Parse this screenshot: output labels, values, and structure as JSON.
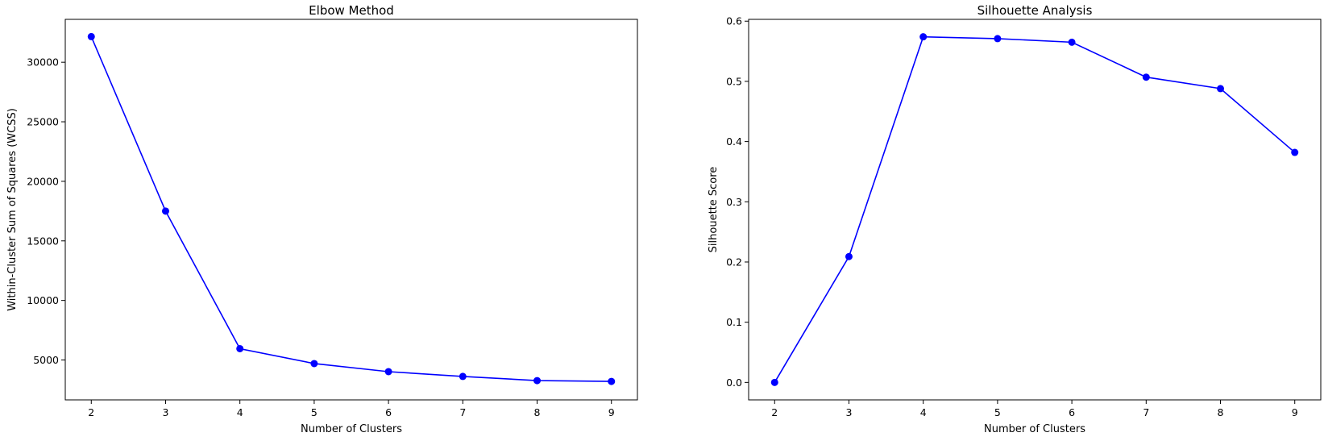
{
  "colors": {
    "line": "#0000ff",
    "axes": "#000000",
    "background": "#ffffff"
  },
  "chart_data": [
    {
      "type": "line",
      "title": "Elbow Method",
      "xlabel": "Number of Clusters",
      "ylabel": "Within-Cluster Sum of Squares (WCSS)",
      "x": [
        2,
        3,
        4,
        5,
        6,
        7,
        8,
        9
      ],
      "xticks": [
        "2",
        "3",
        "4",
        "5",
        "6",
        "7",
        "8",
        "9"
      ],
      "series": [
        {
          "values": [
            32150,
            17500,
            5950,
            4700,
            4020,
            3620,
            3270,
            3200
          ],
          "color": "#0000ff",
          "marker": "circle"
        }
      ],
      "yticks": [
        5000,
        10000,
        15000,
        20000,
        25000,
        30000
      ],
      "ytick_labels": [
        "5000",
        "10000",
        "15000",
        "20000",
        "25000",
        "30000"
      ],
      "xlim": [
        1.65,
        9.35
      ],
      "ylim": [
        1650,
        33600
      ],
      "grid": false
    },
    {
      "type": "line",
      "title": "Silhouette Analysis",
      "xlabel": "Number of Clusters",
      "ylabel": "Silhouette Score",
      "x": [
        2,
        3,
        4,
        5,
        6,
        7,
        8,
        9
      ],
      "xticks": [
        "2",
        "3",
        "4",
        "5",
        "6",
        "7",
        "8",
        "9"
      ],
      "series": [
        {
          "values": [
            0.0,
            0.209,
            0.574,
            0.571,
            0.565,
            0.507,
            0.488,
            0.382
          ],
          "color": "#0000ff",
          "marker": "circle"
        }
      ],
      "yticks": [
        0.0,
        0.1,
        0.2,
        0.3,
        0.4,
        0.5,
        0.6
      ],
      "ytick_labels": [
        "0.0",
        "0.1",
        "0.2",
        "0.3",
        "0.4",
        "0.5",
        "0.6"
      ],
      "xlim": [
        1.65,
        9.35
      ],
      "ylim": [
        -0.029,
        0.603
      ],
      "grid": false
    }
  ]
}
